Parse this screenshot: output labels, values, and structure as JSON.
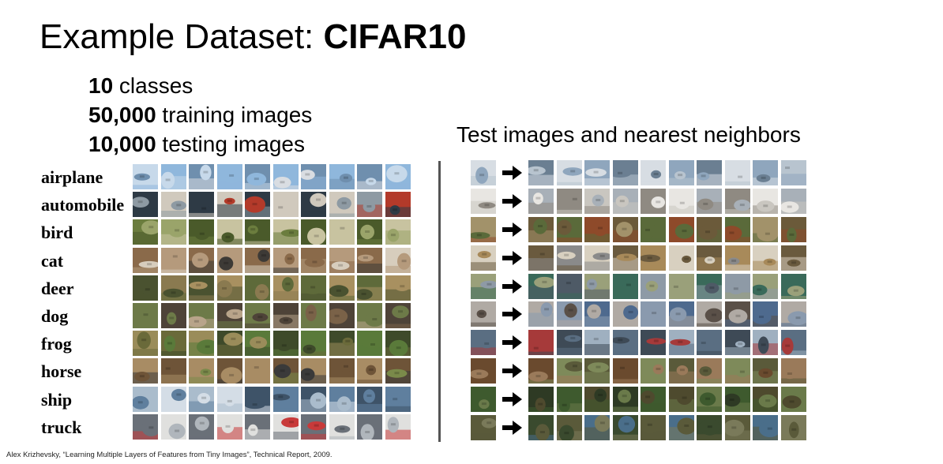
{
  "title": {
    "plain": "Example Dataset: ",
    "bold": "CIFAR10"
  },
  "stats": [
    {
      "number": "10",
      "text": " classes"
    },
    {
      "number": "50,000",
      "text": " training images"
    },
    {
      "number": "10,000",
      "text": " testing images"
    }
  ],
  "classes": [
    "airplane",
    "automobile",
    "bird",
    "cat",
    "deer",
    "dog",
    "frog",
    "horse",
    "ship",
    "truck"
  ],
  "right_title": "Test images and nearest neighbors",
  "citation": "Alex Krizhevsky, “Learning Multiple Layers of Features from Tiny Images”, Technical Report, 2009.",
  "colors": {
    "class_palettes": [
      [
        "#8fb7dc",
        "#c7d9ea",
        "#6f8fae",
        "#d9dde2"
      ],
      [
        "#b33a2a",
        "#2e3a45",
        "#8e9aa3",
        "#d0c9bd"
      ],
      [
        "#6b7d3e",
        "#4a5a2a",
        "#9aa46a",
        "#c8c3a0"
      ],
      [
        "#8a6a4a",
        "#3d3a36",
        "#b59a7c",
        "#d7cdbd"
      ],
      [
        "#5e6a3a",
        "#8a7a50",
        "#a89060",
        "#4a5230"
      ],
      [
        "#7a6248",
        "#4e4338",
        "#b8a48a",
        "#6d7a48"
      ],
      [
        "#6a6a3a",
        "#3e4a2a",
        "#9a8c5a",
        "#5a7a3a"
      ],
      [
        "#6e5438",
        "#3a3a3a",
        "#a88c64",
        "#7a8a4a"
      ],
      [
        "#5f7f9e",
        "#aabccc",
        "#3e5368",
        "#d4dde6"
      ],
      [
        "#b0b6bc",
        "#6a7078",
        "#c83a3a",
        "#e0e0de"
      ]
    ],
    "test_palettes": [
      [
        "#8fa6bd",
        "#d7dde3",
        "#6b7f92",
        "#b8c4cf"
      ],
      [
        "#c9c6c0",
        "#e8e6e2",
        "#8f8a82",
        "#a8b0b8"
      ],
      [
        "#6b5a3a",
        "#8e4a2a",
        "#a2926a",
        "#5a6a3a"
      ],
      [
        "#a88a5a",
        "#6a5a3e",
        "#d8d0c0",
        "#8a8a8a"
      ],
      [
        "#4e5a66",
        "#8e9aa6",
        "#3a6a5a",
        "#9aa07a"
      ],
      [
        "#4e6a8e",
        "#8a9aae",
        "#5a5048",
        "#b0aaa4"
      ],
      [
        "#5a6e82",
        "#9fb0c0",
        "#3e4a56",
        "#a63a3a"
      ],
      [
        "#6a4a2e",
        "#9a7a5a",
        "#5a5a3a",
        "#7e8a5a"
      ],
      [
        "#3e5a2e",
        "#2e3a24",
        "#6a7a4a",
        "#4e4a2e"
      ],
      [
        "#4a6e8a",
        "#5a5a3a",
        "#3a4a2e",
        "#7a7a5a"
      ]
    ],
    "arrow": "#000000",
    "divider": "#555555"
  }
}
